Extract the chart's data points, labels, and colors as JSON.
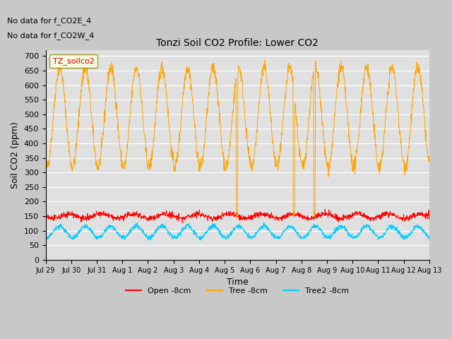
{
  "title": "Tonzi Soil CO2 Profile: Lower CO2",
  "xlabel": "Time",
  "ylabel": "Soil CO2 (ppm)",
  "annotation_lines": [
    "No data for f_CO2E_4",
    "No data for f_CO2W_4"
  ],
  "legend_label": "TZ_soilco2",
  "series_labels": [
    "Open -8cm",
    "Tree -8cm",
    "Tree2 -8cm"
  ],
  "series_colors": [
    "#ff0000",
    "#ffa500",
    "#00ccff"
  ],
  "ylim": [
    0,
    720
  ],
  "yticks": [
    0,
    50,
    100,
    150,
    200,
    250,
    300,
    350,
    400,
    450,
    500,
    550,
    600,
    650,
    700
  ],
  "fig_bg_color": "#c8c8c8",
  "plot_bg_color": "#e0e0e0",
  "n_points": 1440,
  "end_day": 15,
  "xtick_labels": [
    "Jul 29",
    "Jul 30",
    "Jul 31",
    "Aug 1",
    "Aug 2",
    "Aug 3",
    "Aug 4",
    "Aug 5",
    "Aug 6",
    "Aug 7",
    "Aug 8",
    "Aug 9",
    "Aug 10",
    "Aug 11",
    "Aug 12",
    "Aug 13"
  ],
  "xtick_positions": [
    0,
    1,
    2,
    3,
    4,
    5,
    6,
    7,
    8,
    9,
    10,
    11,
    12,
    13,
    14,
    15
  ]
}
